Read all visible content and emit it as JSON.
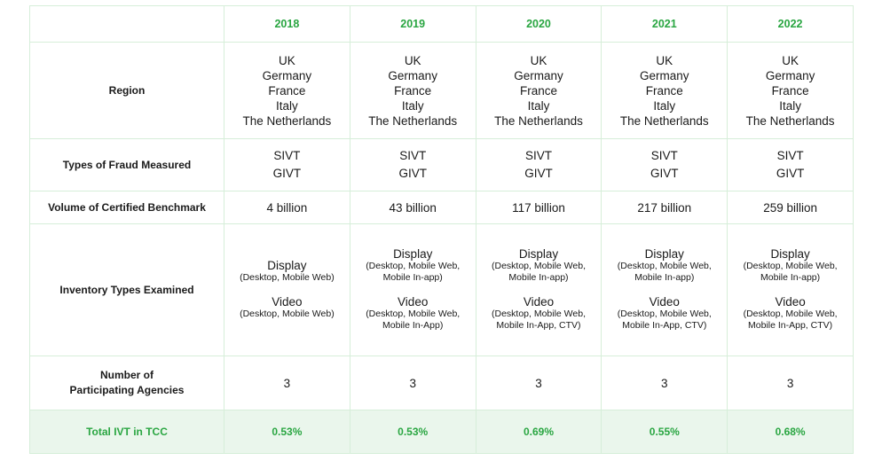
{
  "years": [
    "2018",
    "2019",
    "2020",
    "2021",
    "2022"
  ],
  "rows": {
    "region": {
      "label": "Region",
      "values": [
        [
          "UK",
          "Germany",
          "France",
          "Italy",
          "The Netherlands"
        ],
        [
          "UK",
          "Germany",
          "France",
          "Italy",
          "The Netherlands"
        ],
        [
          "UK",
          "Germany",
          "France",
          "Italy",
          "The Netherlands"
        ],
        [
          "UK",
          "Germany",
          "France",
          "Italy",
          "The Netherlands"
        ],
        [
          "UK",
          "Germany",
          "France",
          "Italy",
          "The Netherlands"
        ]
      ]
    },
    "fraud": {
      "label": "Types of Fraud Measured",
      "values": [
        [
          "SIVT",
          "GIVT"
        ],
        [
          "SIVT",
          "GIVT"
        ],
        [
          "SIVT",
          "GIVT"
        ],
        [
          "SIVT",
          "GIVT"
        ],
        [
          "SIVT",
          "GIVT"
        ]
      ]
    },
    "volume": {
      "label": "Volume of Certified Benchmark",
      "values": [
        "4 billion",
        "43 billion",
        "117 billion",
        "217 billion",
        "259 billion"
      ]
    },
    "inventory": {
      "label": "Inventory Types Examined",
      "values": [
        {
          "display": "Display",
          "display_sub": [
            "(Desktop, Mobile Web)"
          ],
          "video": "Video",
          "video_sub": [
            "(Desktop, Mobile Web)"
          ]
        },
        {
          "display": "Display",
          "display_sub": [
            "(Desktop, Mobile Web,",
            "Mobile In-app)"
          ],
          "video": "Video",
          "video_sub": [
            "(Desktop, Mobile Web,",
            "Mobile In-App)"
          ]
        },
        {
          "display": "Display",
          "display_sub": [
            "(Desktop, Mobile Web,",
            "Mobile In-app)"
          ],
          "video": "Video",
          "video_sub": [
            "(Desktop, Mobile Web,",
            "Mobile In-App, CTV)"
          ]
        },
        {
          "display": "Display",
          "display_sub": [
            "(Desktop, Mobile Web,",
            "Mobile In-app)"
          ],
          "video": "Video",
          "video_sub": [
            "(Desktop, Mobile Web,",
            "Mobile In-App, CTV)"
          ]
        },
        {
          "display": "Display",
          "display_sub": [
            "(Desktop, Mobile Web,",
            "Mobile In-app)"
          ],
          "video": "Video",
          "video_sub": [
            "(Desktop, Mobile Web,",
            "Mobile In-App, CTV)"
          ]
        }
      ]
    },
    "agencies": {
      "label": [
        "Number of",
        "Participating Agencies"
      ],
      "values": [
        "3",
        "3",
        "3",
        "3",
        "3"
      ]
    },
    "total": {
      "label": "Total IVT in TCC",
      "values": [
        "0.53%",
        "0.53%",
        "0.69%",
        "0.55%",
        "0.68%"
      ]
    }
  },
  "colors": {
    "accent": "#2aa642",
    "border": "#d6eed9",
    "total_row_bg": "#eaf6ec"
  }
}
